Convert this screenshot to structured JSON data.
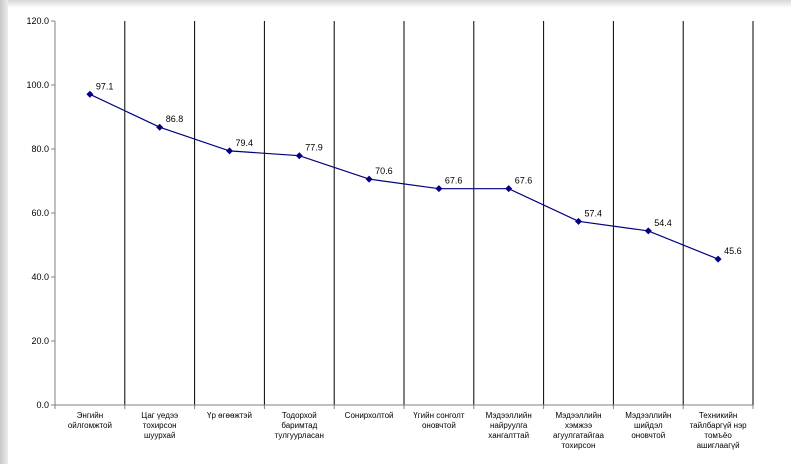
{
  "chart_data": {
    "type": "line",
    "title": "",
    "xlabel": "",
    "ylabel": "",
    "ylim": [
      0,
      120
    ],
    "yticks": [
      "0.0",
      "20.0",
      "40.0",
      "60.0",
      "80.0",
      "100.0",
      "120.0"
    ],
    "grid": "vertical",
    "legend": "none",
    "colors": {
      "line": "#000080",
      "marker": "#000080",
      "grid": "#000000",
      "axis": "#808080"
    },
    "categories": [
      [
        "Энгийн",
        "ойлгомжтой"
      ],
      [
        "Цаг үедээ",
        "тохирсон",
        "шуурхай"
      ],
      [
        "Үр өгөөжтэй"
      ],
      [
        "Тодорхой",
        "баримтад",
        "тулгуурласан"
      ],
      [
        "Сонирхолтой"
      ],
      [
        "Үгийн сонголт",
        "оновчтой"
      ],
      [
        "Мэдээллийн",
        "найруулга",
        "хангалттай"
      ],
      [
        "Мэдээллийн",
        "хэмжээ",
        "агуулгатайгаа",
        "тохирсон"
      ],
      [
        "Мэдээллийн",
        "шийдэл",
        "оновчтой"
      ],
      [
        "Техникийн",
        "тайлбаргүй нэр",
        "томъёо",
        "ашиглаагүй"
      ]
    ],
    "values": [
      97.1,
      86.8,
      79.4,
      77.9,
      70.6,
      67.6,
      67.6,
      57.4,
      54.4,
      45.6
    ],
    "value_labels": [
      "97.1",
      "86.8",
      "79.4",
      "77.9",
      "70.6",
      "67.6",
      "67.6",
      "57.4",
      "54.4",
      "45.6"
    ]
  }
}
